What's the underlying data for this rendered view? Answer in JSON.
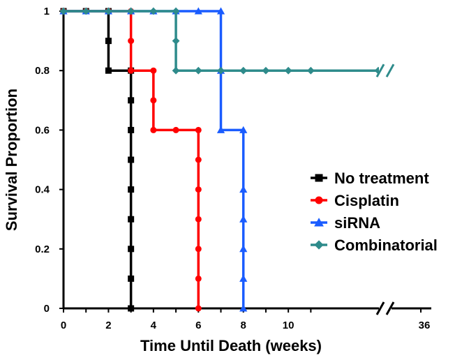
{
  "chart_data": {
    "type": "line",
    "chart_subtype": "kaplan-meier step survival curve",
    "title": "",
    "xlabel": "Time Until Death (weeks)",
    "ylabel": "Survival Proportion",
    "xlim": [
      0,
      14
    ],
    "ylim": [
      0,
      1
    ],
    "x_axis_break": true,
    "x_ticks": [
      "0",
      "2",
      "4",
      "6",
      "8",
      "10",
      "36"
    ],
    "y_ticks": [
      "0",
      "0.2",
      "0.4",
      "0.6",
      "0.8",
      "1"
    ],
    "grid": false,
    "legend_position": "right",
    "series": [
      {
        "name": "No treatment",
        "color": "#000000",
        "marker": "square",
        "steps": [
          [
            0,
            1
          ],
          [
            2,
            0.8
          ],
          [
            3,
            0
          ]
        ],
        "points": [
          [
            0,
            1
          ],
          [
            1,
            1
          ],
          [
            2,
            1
          ],
          [
            2,
            0.9
          ],
          [
            2,
            0.8
          ],
          [
            3,
            0.8
          ],
          [
            3,
            0.7
          ],
          [
            3,
            0.6
          ],
          [
            3,
            0.5
          ],
          [
            3,
            0.4
          ],
          [
            3,
            0.3
          ],
          [
            3,
            0.2
          ],
          [
            3,
            0.1
          ],
          [
            3,
            0
          ]
        ]
      },
      {
        "name": "Cisplatin",
        "color": "#ff0000",
        "marker": "circle",
        "steps": [
          [
            0,
            1
          ],
          [
            3,
            0.8
          ],
          [
            4,
            0.6
          ],
          [
            6,
            0
          ]
        ],
        "points": [
          [
            0,
            1
          ],
          [
            1,
            1
          ],
          [
            2,
            1
          ],
          [
            3,
            1
          ],
          [
            3,
            0.9
          ],
          [
            3,
            0.8
          ],
          [
            4,
            0.8
          ],
          [
            4,
            0.7
          ],
          [
            4,
            0.6
          ],
          [
            5,
            0.6
          ],
          [
            6,
            0.6
          ],
          [
            6,
            0.5
          ],
          [
            6,
            0.4
          ],
          [
            6,
            0.3
          ],
          [
            6,
            0.2
          ],
          [
            6,
            0.1
          ],
          [
            6,
            0
          ]
        ]
      },
      {
        "name": "siRNA",
        "color": "#1a5cff",
        "marker": "triangle",
        "steps": [
          [
            0,
            1
          ],
          [
            7,
            0.6
          ],
          [
            8,
            0
          ]
        ],
        "points": [
          [
            0,
            1
          ],
          [
            1,
            1
          ],
          [
            2,
            1
          ],
          [
            3,
            1
          ],
          [
            4,
            1
          ],
          [
            5,
            1
          ],
          [
            6,
            1
          ],
          [
            7,
            1
          ],
          [
            7,
            0.8
          ],
          [
            7,
            0.6
          ],
          [
            8,
            0.6
          ],
          [
            8,
            0.4
          ],
          [
            8,
            0.3
          ],
          [
            8,
            0.2
          ],
          [
            8,
            0.1
          ],
          [
            8,
            0
          ]
        ]
      },
      {
        "name": "Combinatorial",
        "color": "#2e8b8b",
        "marker": "diamond",
        "steps": [
          [
            0,
            1
          ],
          [
            5,
            0.8
          ]
        ],
        "line_end": 14,
        "points": [
          [
            0,
            1
          ],
          [
            1,
            1
          ],
          [
            2,
            1
          ],
          [
            3,
            1
          ],
          [
            4,
            1
          ],
          [
            5,
            1
          ],
          [
            5,
            0.9
          ],
          [
            5,
            0.8
          ],
          [
            6,
            0.8
          ],
          [
            7,
            0.8
          ],
          [
            8,
            0.8
          ],
          [
            9,
            0.8
          ],
          [
            10,
            0.8
          ],
          [
            11,
            0.8
          ],
          [
            14,
            0.8
          ]
        ]
      }
    ]
  }
}
